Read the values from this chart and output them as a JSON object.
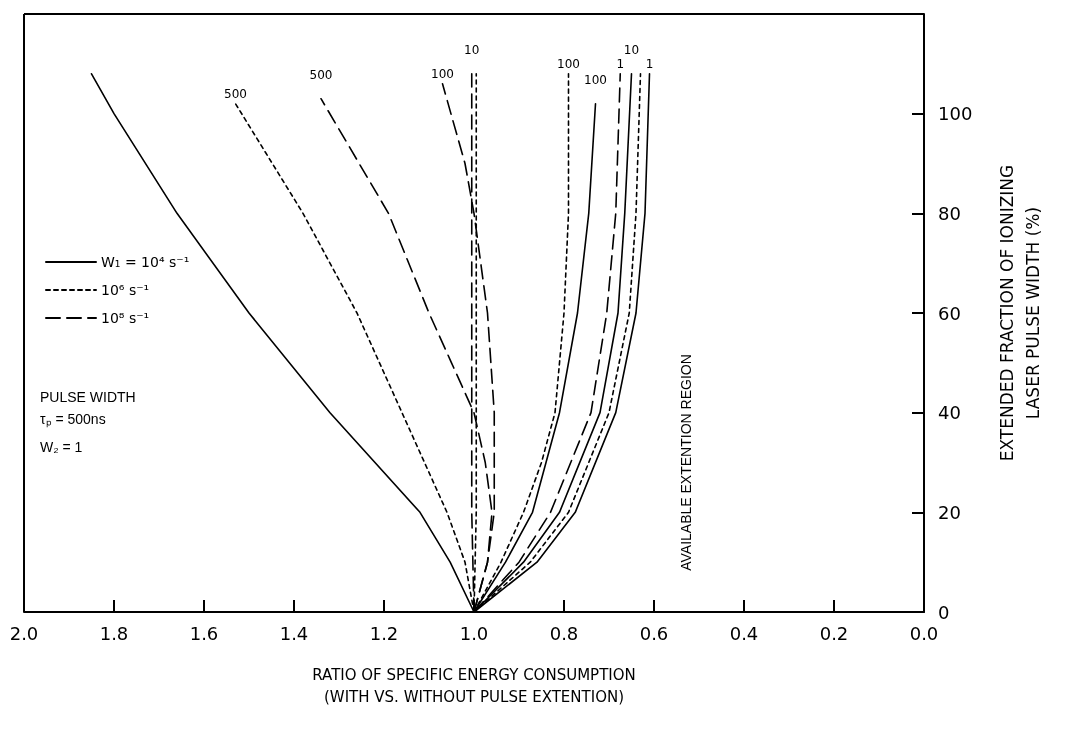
{
  "chart_data": {
    "type": "line",
    "xlabel": "RATIO OF SPECIFIC ENERGY CONSUMPTION\n(WITH VS. WITHOUT PULSE EXTENTION)",
    "ylabel": "EXTENDED FRACTION OF IONIZING\nLASER PULSE WIDTH (%)",
    "xlim": [
      2.0,
      0.0
    ],
    "xticks": [
      {
        "value": 2.0,
        "label": "2.0"
      },
      {
        "value": 1.8,
        "label": "1.8"
      },
      {
        "value": 1.6,
        "label": "1.6"
      },
      {
        "value": 1.4,
        "label": "1.4"
      },
      {
        "value": 1.2,
        "label": "1.2"
      },
      {
        "value": 1.0,
        "label": "1.0"
      },
      {
        "value": 0.8,
        "label": "0.8"
      },
      {
        "value": 0.6,
        "label": "0.6"
      },
      {
        "value": 0.4,
        "label": "0.4"
      },
      {
        "value": 0.2,
        "label": "0.2"
      },
      {
        "value": 0.0,
        "label": "0.0"
      }
    ],
    "ylim": [
      0,
      120
    ],
    "yticks": [
      0,
      20,
      40,
      60,
      80,
      100
    ],
    "grid": false,
    "marker": "none",
    "legend": "left",
    "series": [
      {
        "name": "W₁ = 10⁴ s⁻¹",
        "color": "#000000",
        "line_style": "solid",
        "x": [
          1.0,
          1.053,
          1.12,
          1.32,
          1.5,
          1.66,
          1.8,
          1.85
        ],
        "values": [
          0,
          10,
          20,
          40,
          60,
          80,
          100,
          108
        ]
      },
      {
        "name": "10⁶ s⁻¹",
        "color": "#000000",
        "line_style": "dotted",
        "x": [
          1.0,
          1.02,
          1.06,
          1.11,
          1.16,
          1.21,
          1.26,
          1.38,
          1.53
        ],
        "values": [
          0,
          10,
          20,
          30,
          40,
          50,
          60,
          80,
          102
        ]
      },
      {
        "name": "10⁸ s⁻¹",
        "color": "#000000",
        "line_style": "dashed",
        "x": [
          1.0,
          0.97,
          0.96,
          0.975,
          1.0,
          1.05,
          1.1,
          1.19,
          1.34
        ],
        "values": [
          0,
          10,
          20,
          30,
          40,
          50,
          60,
          80,
          103
        ]
      },
      {
        "color": "#000000",
        "line_style": "dashed",
        "x": [
          1.0,
          0.97,
          0.955,
          0.955,
          0.97,
          1.0,
          1.02,
          1.07
        ],
        "values": [
          0,
          10,
          20,
          40,
          60,
          80,
          90,
          106
        ]
      },
      {
        "color": "#000000",
        "line_style": "dashed",
        "x": [
          1.0,
          1.005,
          1.005
        ],
        "values": [
          0,
          20,
          108
        ]
      },
      {
        "color": "#000000",
        "line_style": "dotted",
        "x": [
          1.0,
          0.995,
          0.995
        ],
        "values": [
          0,
          20,
          108
        ]
      },
      {
        "color": "#000000",
        "line_style": "dotted",
        "x": [
          1.0,
          0.94,
          0.89,
          0.85,
          0.82,
          0.8,
          0.79,
          0.79
        ],
        "values": [
          0,
          10,
          20,
          30,
          40,
          60,
          80,
          108
        ]
      },
      {
        "color": "#000000",
        "line_style": "solid",
        "x": [
          1.0,
          0.93,
          0.87,
          0.81,
          0.77,
          0.745,
          0.73
        ],
        "values": [
          0,
          10,
          20,
          40,
          60,
          80,
          102
        ]
      },
      {
        "color": "#000000",
        "line_style": "dashed",
        "x": [
          1.0,
          0.9,
          0.83,
          0.74,
          0.705,
          0.685,
          0.675
        ],
        "values": [
          0,
          10,
          20,
          40,
          60,
          80,
          108
        ]
      },
      {
        "color": "#000000",
        "line_style": "solid",
        "x": [
          1.0,
          0.89,
          0.81,
          0.72,
          0.68,
          0.665,
          0.65
        ],
        "values": [
          0,
          10,
          20,
          40,
          60,
          80,
          108
        ]
      },
      {
        "color": "#000000",
        "line_style": "dotted",
        "x": [
          1.0,
          0.875,
          0.79,
          0.7,
          0.655,
          0.64,
          0.63
        ],
        "values": [
          0,
          10,
          20,
          40,
          60,
          80,
          108
        ]
      },
      {
        "color": "#000000",
        "line_style": "solid",
        "x": [
          1.0,
          0.86,
          0.775,
          0.685,
          0.64,
          0.62,
          0.61
        ],
        "values": [
          0,
          10,
          20,
          40,
          60,
          80,
          108
        ]
      }
    ],
    "annotations": [
      {
        "text": "500",
        "x": 1.53,
        "y": 102
      },
      {
        "text": "500",
        "x": 1.34,
        "y": 103
      },
      {
        "text": "100",
        "x": 1.07,
        "y": 106
      },
      {
        "text": "10",
        "x": 1.005,
        "y": 108
      },
      {
        "text": "100",
        "x": 0.79,
        "y": 108
      },
      {
        "text": "100",
        "x": 0.73,
        "y": 102
      },
      {
        "text": "1",
        "x": 0.675,
        "y": 108
      },
      {
        "text": "10",
        "x": 0.65,
        "y": 108
      },
      {
        "text": "1",
        "x": 0.61,
        "y": 108
      },
      "PULSE WIDTH",
      "τₚ = 500ns",
      "W₂ = 1",
      "AVAILABLE EXTENTION REGION"
    ]
  }
}
